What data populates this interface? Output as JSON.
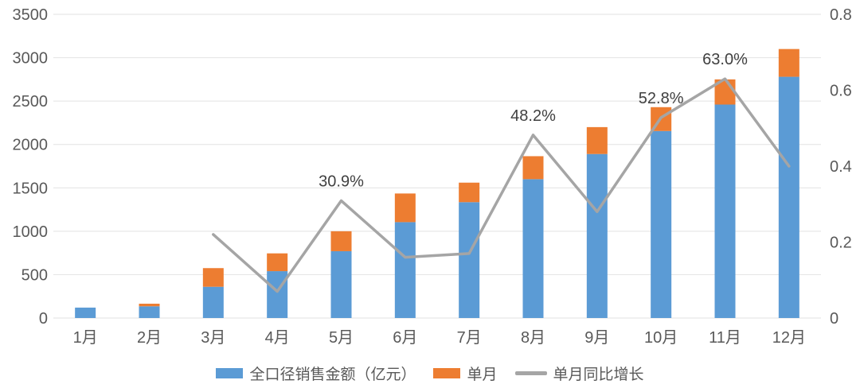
{
  "chart_data": {
    "type": "bar",
    "subtype": "stacked-bar-with-line",
    "title": "",
    "categories": [
      "1月",
      "2月",
      "3月",
      "4月",
      "5月",
      "6月",
      "7月",
      "8月",
      "9月",
      "10月",
      "11月",
      "12月"
    ],
    "series": [
      {
        "name": "全口径销售金额（亿元）",
        "chart": "bar",
        "stack": "total",
        "color": "#5B9BD5",
        "axis": "primary",
        "values": [
          120,
          135,
          360,
          540,
          770,
          1105,
          1335,
          1600,
          1890,
          2155,
          2460,
          2780
        ]
      },
      {
        "name": "单月",
        "chart": "bar",
        "stack": "total",
        "color": "#ED7D31",
        "axis": "primary",
        "values": [
          0,
          30,
          215,
          205,
          230,
          330,
          225,
          265,
          310,
          275,
          290,
          320
        ]
      },
      {
        "name": "单月同比增长",
        "chart": "line",
        "color": "#A5A5A5",
        "axis": "secondary",
        "values": [
          null,
          null,
          0.22,
          0.07,
          0.309,
          0.16,
          0.17,
          0.482,
          0.28,
          0.528,
          0.63,
          0.4
        ],
        "point_labels": [
          null,
          null,
          null,
          null,
          "30.9%",
          null,
          null,
          "48.2%",
          null,
          "52.8%",
          "63.0%",
          null
        ]
      }
    ],
    "left_axis": {
      "min": 0,
      "max": 3500,
      "step": 500,
      "tick_labels": [
        "0",
        "500",
        "1000",
        "1500",
        "2000",
        "2500",
        "3000",
        "3500"
      ]
    },
    "right_axis": {
      "min": 0,
      "max": 0.8,
      "step": 0.2,
      "tick_labels": [
        "0",
        "0.2",
        "0.4",
        "0.6",
        "0.8"
      ]
    },
    "grid": true,
    "grid_color": "#E2E2E2",
    "axis_text_color": "#595959",
    "data_label_color": "#404040",
    "legend_position": "bottom"
  }
}
